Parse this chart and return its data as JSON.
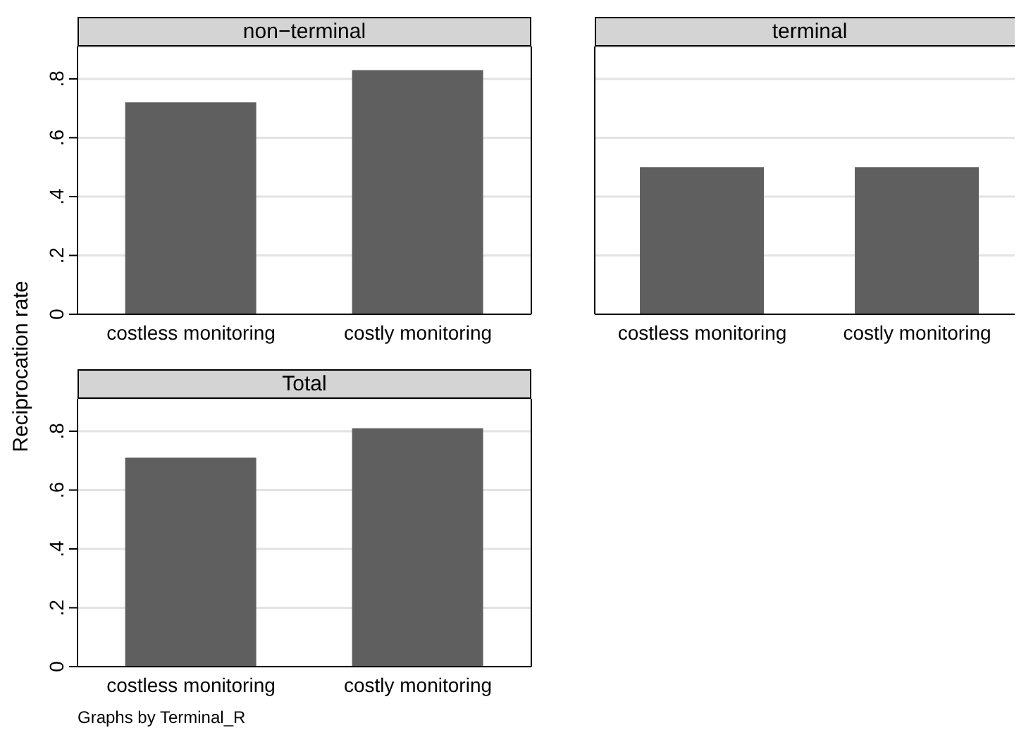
{
  "chart_data": [
    {
      "type": "bar",
      "title": "non−terminal",
      "ylabel": "Reciprocation rate",
      "categories": [
        "costless monitoring",
        "costly monitoring"
      ],
      "values": [
        0.72,
        0.83
      ],
      "color": "#5f5f5f",
      "ylim": [
        0,
        0.91
      ],
      "yticks": [
        {
          "value": 0,
          "label": "0"
        },
        {
          "value": 0.2,
          "label": ".2"
        },
        {
          "value": 0.4,
          "label": ".4"
        },
        {
          "value": 0.6,
          "label": ".6"
        },
        {
          "value": 0.8,
          "label": ".8"
        }
      ],
      "grid": "y"
    },
    {
      "type": "bar",
      "title": "terminal",
      "categories": [
        "costless monitoring",
        "costly monitoring"
      ],
      "values": [
        0.5,
        0.5
      ],
      "color": "#5f5f5f",
      "ylim": [
        0,
        0.91
      ],
      "yticks": [
        0,
        0.2,
        0.4,
        0.6,
        0.8
      ],
      "grid": "y",
      "tick_labels": "x"
    },
    {
      "type": "bar",
      "title": "Total",
      "categories": [
        "costless monitoring",
        "costly monitoring"
      ],
      "values": [
        0.71,
        0.81
      ],
      "color": "#5f5f5f",
      "ylim": [
        0,
        0.91
      ],
      "yticks": [
        {
          "value": 0,
          "label": "0"
        },
        {
          "value": 0.2,
          "label": ".2"
        },
        {
          "value": 0.4,
          "label": ".4"
        },
        {
          "value": 0.6,
          "label": ".6"
        },
        {
          "value": 0.8,
          "label": ".8"
        }
      ],
      "grid": "y",
      "annotations": [
        "Graphs by Terminal_R"
      ]
    }
  ]
}
